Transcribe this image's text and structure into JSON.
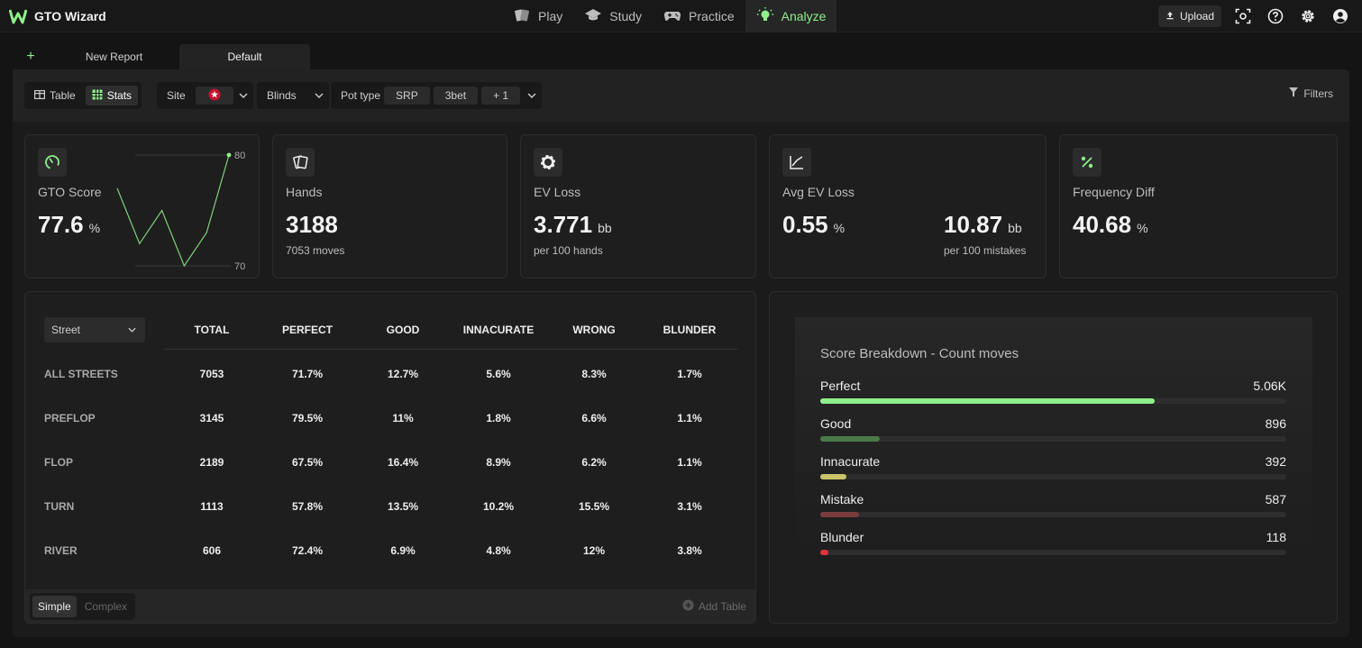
{
  "app": {
    "name": "GTO Wizard"
  },
  "nav": [
    {
      "label": "Play",
      "icon": "cards-icon",
      "active": false
    },
    {
      "label": "Study",
      "icon": "graduation-cap-icon",
      "active": false
    },
    {
      "label": "Practice",
      "icon": "gamepad-icon",
      "active": false
    },
    {
      "label": "Analyze",
      "icon": "lightbulb-icon",
      "active": true
    }
  ],
  "toolbar": {
    "upload_label": "Upload"
  },
  "tabs": {
    "new_report": "New Report",
    "default": "Default"
  },
  "filters": {
    "view_table": "Table",
    "view_stats": "Stats",
    "site_label": "Site",
    "blinds_label": "Blinds",
    "pot_type_label": "Pot type",
    "pot_chips": [
      "SRP",
      "3bet",
      "+ 1"
    ],
    "filters_label": "Filters"
  },
  "stats": {
    "gto_score": {
      "label": "GTO Score",
      "value": "77.6",
      "unit": "%",
      "spark_max": "80",
      "spark_min": "70",
      "spark_points": [
        77,
        72,
        75,
        70,
        73,
        80
      ]
    },
    "hands": {
      "label": "Hands",
      "value": "3188",
      "sub": "7053 moves"
    },
    "ev_loss": {
      "label": "EV Loss",
      "value": "3.771",
      "unit": "bb",
      "sub": "per 100 hands"
    },
    "avg_ev_loss": {
      "label": "Avg EV Loss",
      "value": "0.55",
      "unit": "%",
      "value2": "10.87",
      "unit2": "bb",
      "sub2": "per 100 mistakes"
    },
    "freq_diff": {
      "label": "Frequency Diff",
      "value": "40.68",
      "unit": "%"
    }
  },
  "table": {
    "street_select": "Street",
    "headers": [
      "TOTAL",
      "PERFECT",
      "GOOD",
      "INNACURATE",
      "WRONG",
      "BLUNDER"
    ],
    "rows": [
      {
        "label": "ALL STREETS",
        "cells": [
          "7053",
          "71.7%",
          "12.7%",
          "5.6%",
          "8.3%",
          "1.7%"
        ]
      },
      {
        "label": "PREFLOP",
        "cells": [
          "3145",
          "79.5%",
          "11%",
          "1.8%",
          "6.6%",
          "1.1%"
        ]
      },
      {
        "label": "FLOP",
        "cells": [
          "2189",
          "67.5%",
          "16.4%",
          "8.9%",
          "6.2%",
          "1.1%"
        ]
      },
      {
        "label": "TURN",
        "cells": [
          "1113",
          "57.8%",
          "13.5%",
          "10.2%",
          "15.5%",
          "3.1%"
        ]
      },
      {
        "label": "RIVER",
        "cells": [
          "606",
          "72.4%",
          "6.9%",
          "4.8%",
          "12%",
          "3.8%"
        ]
      }
    ],
    "mode_simple": "Simple",
    "mode_complex": "Complex",
    "add_table": "Add Table"
  },
  "breakdown": {
    "title": "Score Breakdown - Count moves",
    "items": [
      {
        "label": "Perfect",
        "value": "5.06K",
        "fraction": 0.718,
        "color": "#8ef08a"
      },
      {
        "label": "Good",
        "value": "896",
        "fraction": 0.127,
        "color": "#4a7a48"
      },
      {
        "label": "Innacurate",
        "value": "392",
        "fraction": 0.056,
        "color": "#c8c46a"
      },
      {
        "label": "Mistake",
        "value": "587",
        "fraction": 0.083,
        "color": "#7a3c3c"
      },
      {
        "label": "Blunder",
        "value": "118",
        "fraction": 0.017,
        "color": "#e0343a"
      }
    ]
  }
}
